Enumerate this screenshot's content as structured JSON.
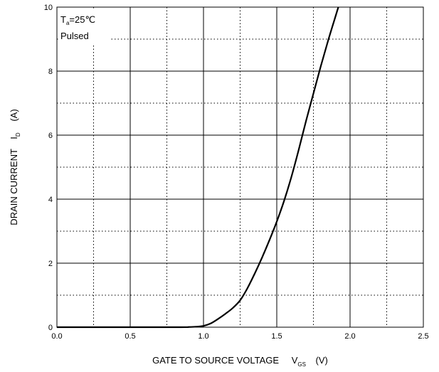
{
  "chart_data": {
    "type": "line",
    "xlabel": {
      "main": "GATE TO SOURCE VOLTAGE",
      "symbol": "V",
      "subscript": "GS",
      "unit": "(V)"
    },
    "ylabel": {
      "main": "DRAIN CURRENT",
      "symbol": "I",
      "subscript": "D",
      "unit": "(A)"
    },
    "xlim": [
      0.0,
      2.5
    ],
    "ylim": [
      0,
      10
    ],
    "x_ticks": [
      "0.0",
      "0.5",
      "1.0",
      "1.5",
      "2.0",
      "2.5"
    ],
    "y_ticks": [
      "0",
      "2",
      "4",
      "6",
      "8",
      "10"
    ],
    "grid": {
      "major": "solid",
      "minor": "dotted",
      "x_major_step": 0.5,
      "x_minor_step": 0.25,
      "y_major_step": 2,
      "y_minor_step": 1
    },
    "annotations": [
      {
        "label_main": "T",
        "label_sub": "a",
        "label_rest": "=25℃"
      },
      {
        "label_main": "Pulsed"
      }
    ],
    "series": [
      {
        "color": "#000000",
        "x": [
          0.0,
          0.8,
          0.9,
          0.95,
          1.0,
          1.05,
          1.1,
          1.15,
          1.2,
          1.25,
          1.3,
          1.35,
          1.4,
          1.45,
          1.5,
          1.55,
          1.6,
          1.65,
          1.7,
          1.75,
          1.8,
          1.85,
          1.9,
          1.92
        ],
        "y": [
          0.0,
          0.0,
          0.005,
          0.015,
          0.04,
          0.12,
          0.26,
          0.42,
          0.6,
          0.84,
          1.22,
          1.68,
          2.18,
          2.72,
          3.3,
          3.95,
          4.7,
          5.55,
          6.45,
          7.3,
          8.15,
          8.95,
          9.7,
          10.0
        ]
      }
    ]
  }
}
